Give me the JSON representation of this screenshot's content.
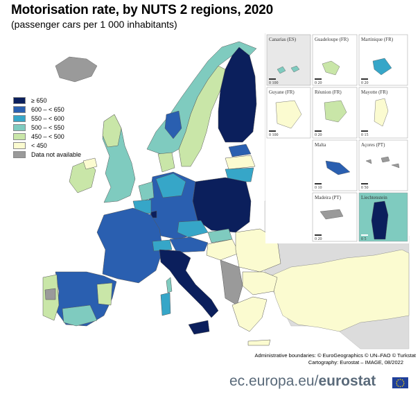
{
  "title": "Motorisation rate, by NUTS 2 regions, 2020",
  "subtitle": "(passenger cars per 1 000 inhabitants)",
  "legend": [
    {
      "label": "≥ 650",
      "color": "#0b1f5c"
    },
    {
      "label": "600 – < 650",
      "color": "#2a5fb0"
    },
    {
      "label": "550 – < 600",
      "color": "#36a6c8"
    },
    {
      "label": "500 – < 550",
      "color": "#7fcbbf"
    },
    {
      "label": "450 – < 500",
      "color": "#c9e6a8"
    },
    {
      "label": "< 450",
      "color": "#fbfbd0"
    },
    {
      "label": "Data not available",
      "color": "#9a9a9a"
    }
  ],
  "insets": [
    {
      "name": "Canarias (ES)",
      "scale": "0  100"
    },
    {
      "name": "Guadeloupe (FR)",
      "scale": "0  20"
    },
    {
      "name": "Martinique (FR)",
      "scale": "0  20"
    },
    {
      "name": "Guyane (FR)",
      "scale": "0  100"
    },
    {
      "name": "Réunion (FR)",
      "scale": "0  20"
    },
    {
      "name": "Mayotte (FR)",
      "scale": "0  15"
    },
    {
      "name": "Malta",
      "scale": "0  10"
    },
    {
      "name": "Açores (PT)",
      "scale": "0  50"
    },
    {
      "name": "Madeira (PT)",
      "scale": "0  20"
    },
    {
      "name": "Liechtenstein",
      "scale": "0  5"
    }
  ],
  "credits": {
    "line1": "Administrative boundaries: © EuroGeographics © UN–FAO © Turkstat",
    "line2": "Cartography: Eurostat – IMAGE, 08/2022"
  },
  "footer": {
    "domain": "ec.europa.eu/",
    "brand": "eurostat"
  }
}
